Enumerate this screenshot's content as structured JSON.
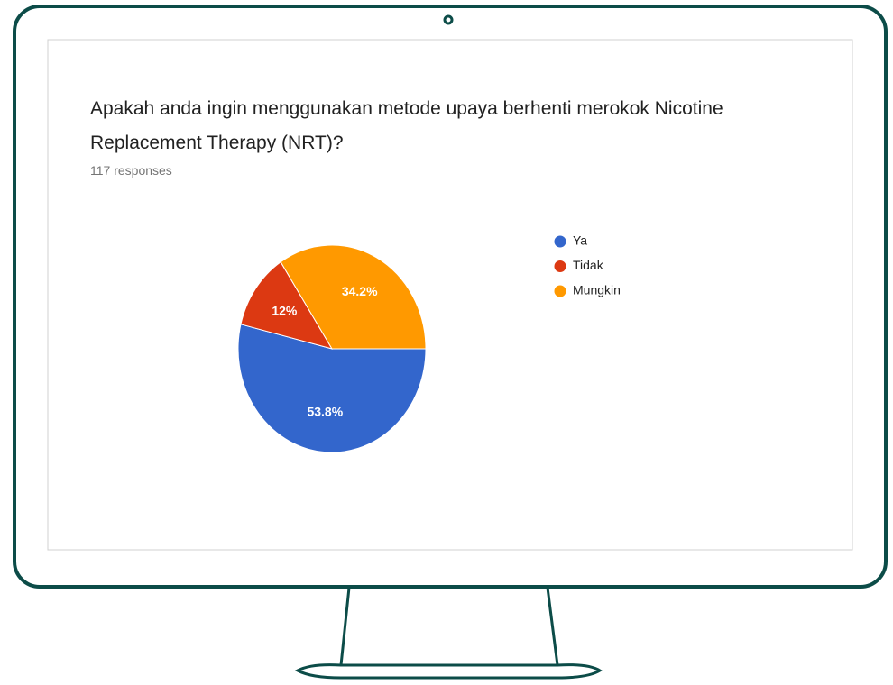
{
  "chart_data": {
    "type": "pie",
    "title": "Apakah anda ingin menggunakan metode upaya berhenti merokok Nicotine Replacement Therapy (NRT)?",
    "subtitle": "117 responses",
    "categories": [
      "Ya",
      "Tidak",
      "Mungkin"
    ],
    "values": [
      53.8,
      12,
      34.2
    ],
    "value_labels": [
      "53.8%",
      "12%",
      "34.2%"
    ],
    "colors": [
      "#3366cc",
      "#dc3912",
      "#ff9900"
    ],
    "legend": "right"
  }
}
